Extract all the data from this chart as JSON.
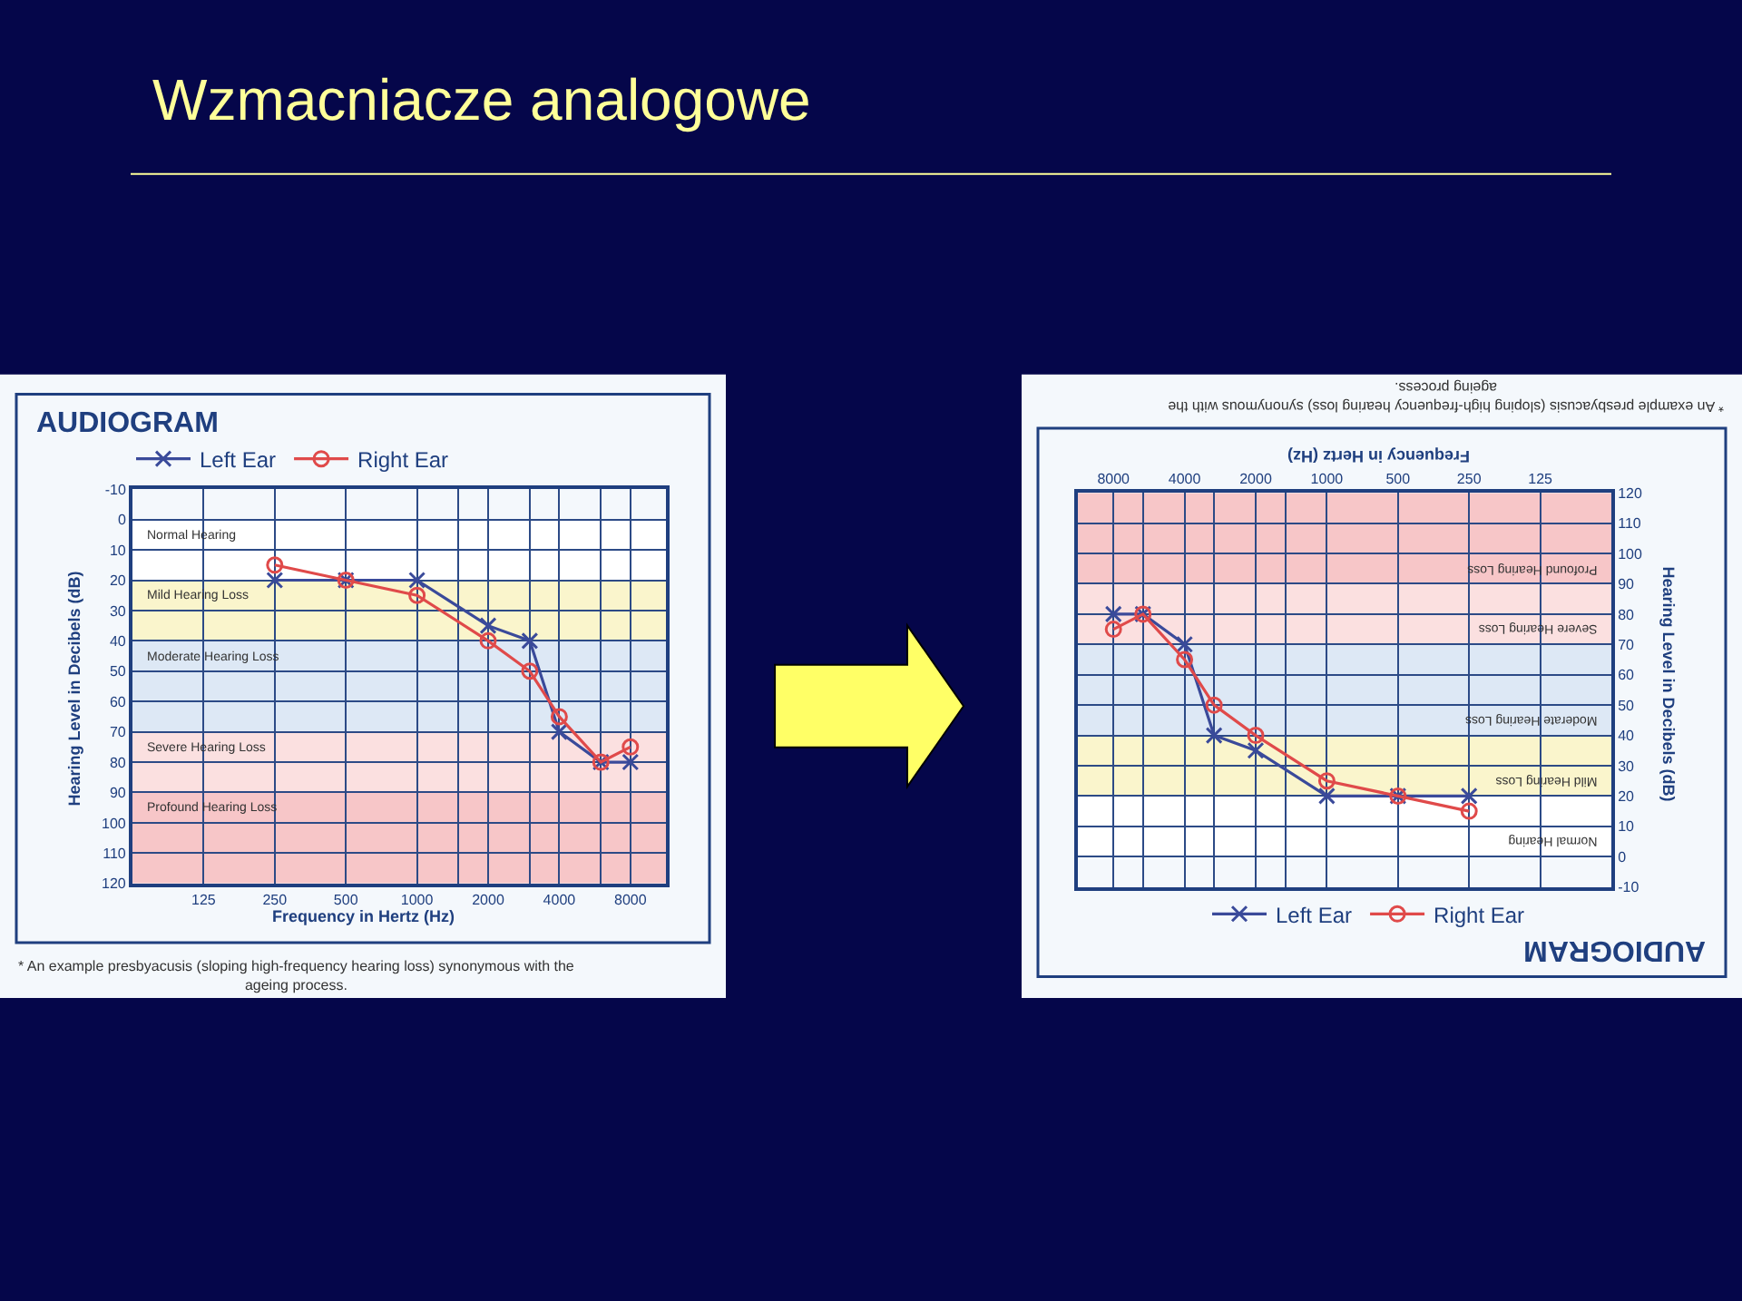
{
  "chart_data": [
    {
      "type": "line",
      "title": "AUDIOGRAM",
      "xlabel": "Frequency in Hertz (Hz)",
      "ylabel": "Hearing Level in Decibels (dB)",
      "annotations": [
        "* An example presbyacusis (sloping high-frequency hearing loss) synonymous with the ageing process.",
        "Wzmacniacze analogowe"
      ],
      "log": "x",
      "xlim": [
        62.5,
        11314
      ],
      "ylim": [
        120,
        -10
      ],
      "xticks": [
        125,
        250,
        500,
        1000,
        {
          "value": 1500,
          "label": null
        },
        2000,
        {
          "value": 3000,
          "label": null
        },
        4000,
        {
          "value": 6000,
          "label": null
        },
        8000
      ],
      "yticks": [
        -10,
        0,
        10,
        20,
        30,
        40,
        50,
        60,
        70,
        80,
        90,
        100,
        110,
        120
      ],
      "series": [
        {
          "name": "Left Ear",
          "color": "#3a4a9a",
          "marker": "cross",
          "x": [
            250,
            500,
            1000,
            2000,
            3000,
            4000,
            6000,
            8000
          ],
          "values": [
            20,
            20,
            20,
            35,
            40,
            70,
            80,
            80
          ]
        },
        {
          "name": "Right Ear",
          "color": "#e04a4a",
          "marker": "circle",
          "x": [
            250,
            500,
            1000,
            2000,
            3000,
            4000,
            6000,
            8000
          ],
          "values": [
            15,
            20,
            25,
            40,
            50,
            65,
            80,
            75
          ]
        }
      ],
      "bands": [
        {
          "axis": "y",
          "from": 0,
          "to": 20,
          "label": "Normal Hearing",
          "color": "#ffffff"
        },
        {
          "axis": "y",
          "from": 20,
          "to": 40,
          "label": "Mild Hearing Loss",
          "color": "#faf5cc"
        },
        {
          "axis": "y",
          "from": 40,
          "to": 70,
          "label": "Moderate Hearing Loss",
          "color": "#dde8f5"
        },
        {
          "axis": "y",
          "from": 70,
          "to": 90,
          "label": "Severe Hearing Loss",
          "color": "#fbe0e0"
        },
        {
          "axis": "y",
          "from": 90,
          "to": 120,
          "label": "Profound Hearing Loss",
          "color": "#f7c6c8"
        }
      ],
      "grid": true,
      "legend": "top left"
    },
    {
      "type": "line",
      "title": "AUDIOGRAM",
      "xlabel": "Frequency in Hertz (Hz)",
      "ylabel": "Hearing Level in Decibels (dB)",
      "annotations": [
        "* An example presbyacusis (sloping high-frequency hearing loss) synonymous with the ageing process."
      ],
      "log": "x",
      "xlim": [
        11314,
        62.5
      ],
      "ylim": [
        -10,
        120
      ],
      "xticks": [
        125,
        250,
        500,
        1000,
        {
          "value": 1500,
          "label": null
        },
        2000,
        {
          "value": 3000,
          "label": null
        },
        4000,
        {
          "value": 6000,
          "label": null
        },
        8000
      ],
      "yticks": [
        -10,
        0,
        10,
        20,
        30,
        40,
        50,
        60,
        70,
        80,
        90,
        100,
        110,
        120
      ],
      "series": [
        {
          "name": "Left Ear",
          "color": "#3a4a9a",
          "marker": "cross",
          "x": [
            250,
            500,
            1000,
            2000,
            3000,
            4000,
            6000,
            8000
          ],
          "values": [
            20,
            20,
            20,
            35,
            40,
            70,
            80,
            80
          ]
        },
        {
          "name": "Right Ear",
          "color": "#e04a4a",
          "marker": "circle",
          "x": [
            250,
            500,
            1000,
            2000,
            3000,
            4000,
            6000,
            8000
          ],
          "values": [
            15,
            20,
            25,
            40,
            50,
            65,
            80,
            75
          ]
        }
      ],
      "bands": [
        {
          "axis": "y",
          "from": 0,
          "to": 20,
          "label": "Normal Hearing",
          "color": "#ffffff"
        },
        {
          "axis": "y",
          "from": 20,
          "to": 40,
          "label": "Mild Hearing Loss",
          "color": "#faf5cc"
        },
        {
          "axis": "y",
          "from": 40,
          "to": 70,
          "label": "Moderate Hearing Loss",
          "color": "#dde8f5"
        },
        {
          "axis": "y",
          "from": 70,
          "to": 90,
          "label": "Severe Hearing Loss",
          "color": "#fbe0e0"
        },
        {
          "axis": "y",
          "from": 90,
          "to": 120,
          "label": "Profound Hearing Loss",
          "color": "#f7c6c8"
        }
      ],
      "grid": true,
      "legend": "bottom"
    }
  ]
}
